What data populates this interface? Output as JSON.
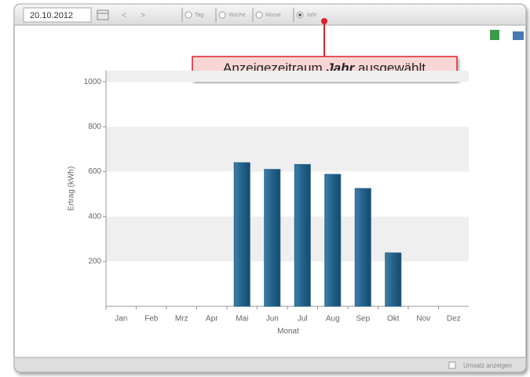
{
  "toolbar": {
    "date": "20.10.2012",
    "prev": "<",
    "next": ">",
    "periods": [
      "Tag",
      "Woche",
      "Monat",
      "Jahr"
    ],
    "selected_period": 3
  },
  "callout": {
    "before": "Anzeigezeitraum",
    "emphasis": "Jahr",
    "after": "ausgewählt"
  },
  "chart_data": {
    "type": "bar",
    "x_label": "Monat",
    "y_label": "Ertrag (kWh)",
    "categories": [
      "Jan",
      "Feb",
      "Mrz",
      "Apr",
      "Mai",
      "Jun",
      "Jul",
      "Aug",
      "Sep",
      "Okt",
      "Nov",
      "Dez"
    ],
    "values": [
      null,
      null,
      null,
      null,
      640,
      610,
      632,
      588,
      525,
      238,
      null,
      null
    ],
    "color": "#23618a",
    "ylim": [
      0,
      1050
    ],
    "yticks": [
      200,
      400,
      600,
      800,
      1000
    ],
    "grid": true
  },
  "footer": {
    "checkbox_label": "Umsatz anzeigen"
  }
}
